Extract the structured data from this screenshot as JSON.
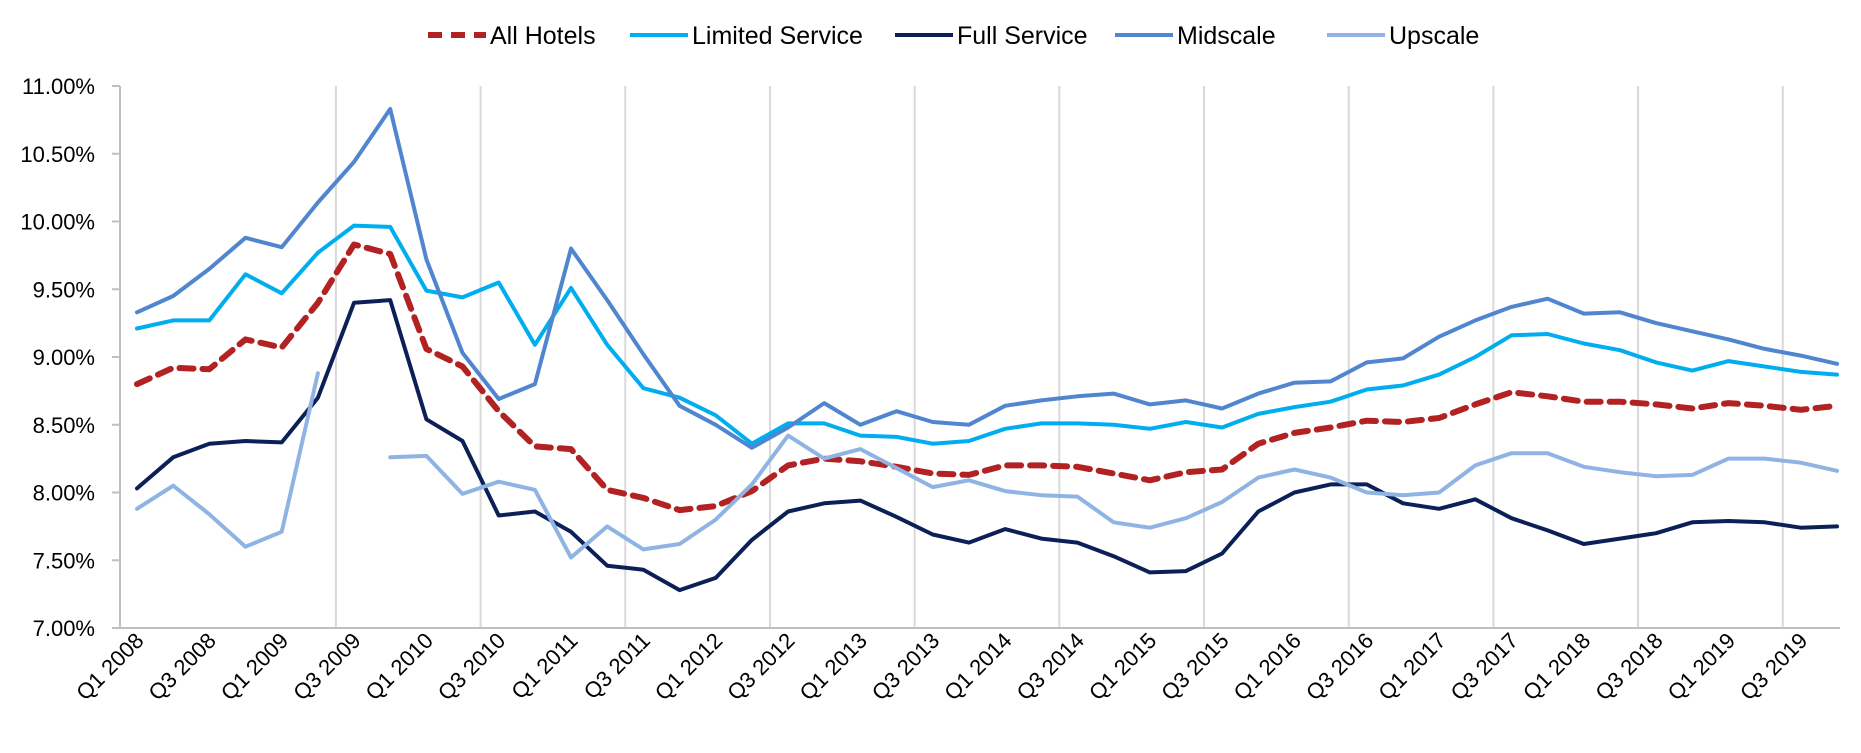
{
  "chart_data": {
    "type": "line",
    "title": "",
    "xlabel": "",
    "ylabel": "",
    "ylim": [
      0.07,
      0.11
    ],
    "y_ticks": [
      "7.00%",
      "7.50%",
      "8.00%",
      "8.50%",
      "9.00%",
      "9.50%",
      "10.00%",
      "10.50%",
      "11.00%"
    ],
    "y_tick_values": [
      0.07,
      0.075,
      0.08,
      0.085,
      0.09,
      0.095,
      0.1,
      0.105,
      0.11
    ],
    "grid": "vertical",
    "legend_position": "top",
    "categories": [
      "Q1 2008",
      "Q2 2008",
      "Q3 2008",
      "Q4 2008",
      "Q1 2009",
      "Q2 2009",
      "Q3 2009",
      "Q4 2009",
      "Q1 2010",
      "Q2 2010",
      "Q3 2010",
      "Q4 2010",
      "Q1 2011",
      "Q2 2011",
      "Q3 2011",
      "Q4 2011",
      "Q1 2012",
      "Q2 2012",
      "Q3 2012",
      "Q4 2012",
      "Q1 2013",
      "Q2 2013",
      "Q3 2013",
      "Q4 2013",
      "Q1 2014",
      "Q2 2014",
      "Q3 2014",
      "Q4 2014",
      "Q1 2015",
      "Q2 2015",
      "Q3 2015",
      "Q4 2015",
      "Q1 2016",
      "Q2 2016",
      "Q3 2016",
      "Q4 2016",
      "Q1 2017",
      "Q2 2017",
      "Q3 2017",
      "Q4 2017",
      "Q1 2018",
      "Q2 2018",
      "Q3 2018",
      "Q4 2018",
      "Q1 2019",
      "Q2 2019",
      "Q3 2019",
      "Q4 2019"
    ],
    "x_tick_labels": [
      "Q1 2008",
      "Q3 2008",
      "Q1 2009",
      "Q3 2009",
      "Q1 2010",
      "Q3 2010",
      "Q1 2011",
      "Q3 2011",
      "Q1 2012",
      "Q3 2012",
      "Q1 2013",
      "Q3 2013",
      "Q1 2014",
      "Q3 2014",
      "Q1 2015",
      "Q3 2015",
      "Q1 2016",
      "Q3 2016",
      "Q1 2017",
      "Q3 2017",
      "Q1 2018",
      "Q3 2018",
      "Q1 2019",
      "Q3 2019"
    ],
    "x_gridlines_at": [
      "Q2 2009",
      "Q2 2010",
      "Q2 2011",
      "Q2 2012",
      "Q2 2013",
      "Q2 2014",
      "Q2 2015",
      "Q2 2016",
      "Q2 2017",
      "Q2 2018",
      "Q2 2019"
    ],
    "series": [
      {
        "name": "All Hotels",
        "color": "#b22222",
        "dashed": true,
        "values": [
          0.088,
          0.0892,
          0.0891,
          0.0913,
          0.0907,
          0.094,
          0.0983,
          0.0976,
          0.0906,
          0.0893,
          0.086,
          0.0834,
          0.0832,
          0.0802,
          0.0796,
          0.0787,
          0.079,
          0.0801,
          0.082,
          0.0825,
          0.0823,
          0.0819,
          0.0814,
          0.0813,
          0.082,
          0.082,
          0.0819,
          0.0814,
          0.0809,
          0.0815,
          0.0817,
          0.0836,
          0.0844,
          0.0848,
          0.0853,
          0.0852,
          0.0855,
          0.0865,
          0.0874,
          0.0871,
          0.0867,
          0.0867,
          0.0865,
          0.0862,
          0.0866,
          0.0864,
          0.0861,
          0.0864
        ]
      },
      {
        "name": "Limited Service",
        "color": "#00aeef",
        "dashed": false,
        "values": [
          0.0921,
          0.0927,
          0.0927,
          0.0961,
          0.0947,
          0.0977,
          0.0997,
          0.0996,
          0.0949,
          0.0944,
          0.0955,
          0.0909,
          0.0951,
          0.0909,
          0.0877,
          0.087,
          0.0857,
          0.0836,
          0.0851,
          0.0851,
          0.0842,
          0.0841,
          0.0836,
          0.0838,
          0.0847,
          0.0851,
          0.0851,
          0.085,
          0.0847,
          0.0852,
          0.0848,
          0.0858,
          0.0863,
          0.0867,
          0.0876,
          0.0879,
          0.0887,
          0.09,
          0.0916,
          0.0917,
          0.091,
          0.0905,
          0.0896,
          0.089,
          0.0897,
          0.0893,
          0.0889,
          0.0887
        ]
      },
      {
        "name": "Full Service",
        "color": "#0b2057",
        "dashed": false,
        "values": [
          0.0803,
          0.0826,
          0.0836,
          0.0838,
          0.0837,
          0.087,
          0.094,
          0.0942,
          0.0854,
          0.0838,
          0.0783,
          0.0786,
          0.0771,
          0.0746,
          0.0743,
          0.0728,
          0.0737,
          0.0765,
          0.0786,
          0.0792,
          0.0794,
          0.0782,
          0.0769,
          0.0763,
          0.0773,
          0.0766,
          0.0763,
          0.0753,
          0.0741,
          0.0742,
          0.0755,
          0.0786,
          0.08,
          0.0806,
          0.0806,
          0.0792,
          0.0788,
          0.0795,
          0.0781,
          0.0772,
          0.0762,
          0.0766,
          0.077,
          0.0778,
          0.0779,
          0.0778,
          0.0774,
          0.0775
        ]
      },
      {
        "name": "Midscale",
        "color": "#4f86cf",
        "dashed": false,
        "values": [
          0.0933,
          0.0945,
          0.0965,
          0.0988,
          0.0981,
          0.1014,
          0.1044,
          0.1083,
          0.0972,
          0.0903,
          0.0869,
          0.088,
          0.098,
          0.0942,
          0.0902,
          0.0864,
          0.085,
          0.0833,
          0.0848,
          0.0866,
          0.085,
          0.086,
          0.0852,
          0.085,
          0.0864,
          0.0868,
          0.0871,
          0.0873,
          0.0865,
          0.0868,
          0.0862,
          0.0873,
          0.0881,
          0.0882,
          0.0896,
          0.0899,
          0.0915,
          0.0927,
          0.0937,
          0.0943,
          0.0932,
          0.0933,
          0.0925,
          0.0919,
          0.0913,
          0.0906,
          0.0901,
          0.0895
        ]
      },
      {
        "name": "Upscale",
        "color": "#8fb4e3",
        "dashed": false,
        "values": [
          0.0788,
          0.0805,
          0.0784,
          0.076,
          0.0771,
          0.0888,
          null,
          0.0826,
          0.0827,
          0.0799,
          0.0808,
          0.0802,
          0.0752,
          0.0775,
          0.0758,
          0.0762,
          0.078,
          0.0806,
          0.0842,
          0.0825,
          0.0832,
          0.0818,
          0.0804,
          0.0809,
          0.0801,
          0.0798,
          0.0797,
          0.0778,
          0.0774,
          0.0781,
          0.0793,
          0.0811,
          0.0817,
          0.0811,
          0.08,
          0.0798,
          0.08,
          0.082,
          0.0829,
          0.0829,
          0.0819,
          0.0815,
          0.0812,
          0.0813,
          0.0825,
          0.0825,
          0.0822,
          0.0816
        ]
      }
    ]
  }
}
